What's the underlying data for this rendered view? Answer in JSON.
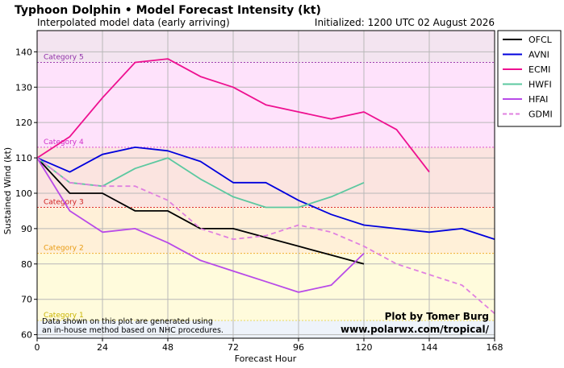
{
  "chart_data": {
    "type": "line",
    "title": "Typhoon Dolphin • Model Forecast Intensity (kt)",
    "subtitle": "Interpolated model data (early arriving)",
    "initialized": "Initialized: 1200 UTC 02 August 2026",
    "xlabel": "Forecast Hour",
    "ylabel": "Sustained Wind (kt)",
    "xlim": [
      0,
      168
    ],
    "ylim": [
      59,
      146
    ],
    "x_ticks": [
      0,
      24,
      48,
      72,
      96,
      120,
      144,
      168
    ],
    "y_ticks": [
      60,
      70,
      80,
      90,
      100,
      110,
      120,
      130,
      140
    ],
    "legend_position": "right-outside-top",
    "grid": true,
    "categories_bands": [
      {
        "name": "Category 1",
        "min": 64,
        "max": 83,
        "color": "#fffbdc",
        "line_color": "#e8d860",
        "label_color": "#c9b300"
      },
      {
        "name": "Category 2",
        "min": 83,
        "max": 96,
        "color": "#fff0d8",
        "line_color": "#f0b030",
        "label_color": "#e89a10"
      },
      {
        "name": "Category 3",
        "min": 96,
        "max": 113,
        "color": "#fbe4e0",
        "line_color": "#e03030",
        "label_color": "#d02020"
      },
      {
        "name": "Category 4",
        "min": 113,
        "max": 137,
        "color": "#fee2fb",
        "line_color": "#e050d0",
        "label_color": "#d030c8"
      },
      {
        "name": "Category 5",
        "min": 137,
        "max": 146,
        "color": "#f3e4f0",
        "line_color": "#a040b0",
        "label_color": "#9030a8"
      }
    ],
    "below_band_color": "#eef3fa",
    "series": [
      {
        "name": "OFCL",
        "color": "#000000",
        "dash": "",
        "x": [
          0,
          12,
          24,
          36,
          48,
          60,
          72,
          84,
          96,
          108,
          120
        ],
        "y": [
          110,
          100,
          100,
          95,
          95,
          90,
          90,
          87.5,
          85,
          82.5,
          80
        ]
      },
      {
        "name": "AVNI",
        "color": "#0000dd",
        "dash": "",
        "x": [
          0,
          12,
          24,
          36,
          48,
          60,
          72,
          84,
          96,
          108,
          120,
          132,
          144,
          156,
          168
        ],
        "y": [
          110,
          106,
          111,
          113,
          112,
          109,
          103,
          103,
          98,
          94,
          91,
          90,
          89,
          90,
          87
        ]
      },
      {
        "name": "ECMI",
        "color": "#ee1090",
        "dash": "",
        "x": [
          0,
          12,
          24,
          36,
          48,
          60,
          72,
          84,
          96,
          108,
          120,
          132,
          144
        ],
        "y": [
          110,
          116,
          127,
          137,
          138,
          133,
          130,
          125,
          123,
          121,
          123,
          118,
          106
        ]
      },
      {
        "name": "HWFI",
        "color": "#5cc8a0",
        "dash": "",
        "x": [
          0,
          12,
          24,
          36,
          48,
          60,
          72,
          84,
          96,
          108,
          120
        ],
        "y": [
          110,
          103,
          102,
          107,
          110,
          104,
          99,
          96,
          96,
          99,
          103
        ]
      },
      {
        "name": "HFAI",
        "color": "#b84ae8",
        "dash": "",
        "x": [
          0,
          12,
          24,
          36,
          48,
          60,
          72,
          84,
          96,
          108,
          120
        ],
        "y": [
          110,
          95,
          89,
          90,
          86,
          81,
          78,
          75,
          72,
          74,
          83
        ]
      },
      {
        "name": "GDMI",
        "color": "#e080e0",
        "dash": "6,4",
        "x": [
          0,
          12,
          24,
          36,
          48,
          60,
          72,
          84,
          96,
          108,
          120,
          132,
          144,
          156,
          168
        ],
        "y": [
          110,
          103,
          102,
          102,
          98,
          90,
          87,
          88,
          91,
          89,
          85,
          80,
          77,
          74,
          66
        ]
      }
    ],
    "note_lines": [
      "Data shown on this plot are generated using",
      "an in-house method based on NHC procedures."
    ],
    "credit_lines": [
      "Plot by Tomer Burg",
      "www.polarwx.com/tropical/"
    ]
  }
}
